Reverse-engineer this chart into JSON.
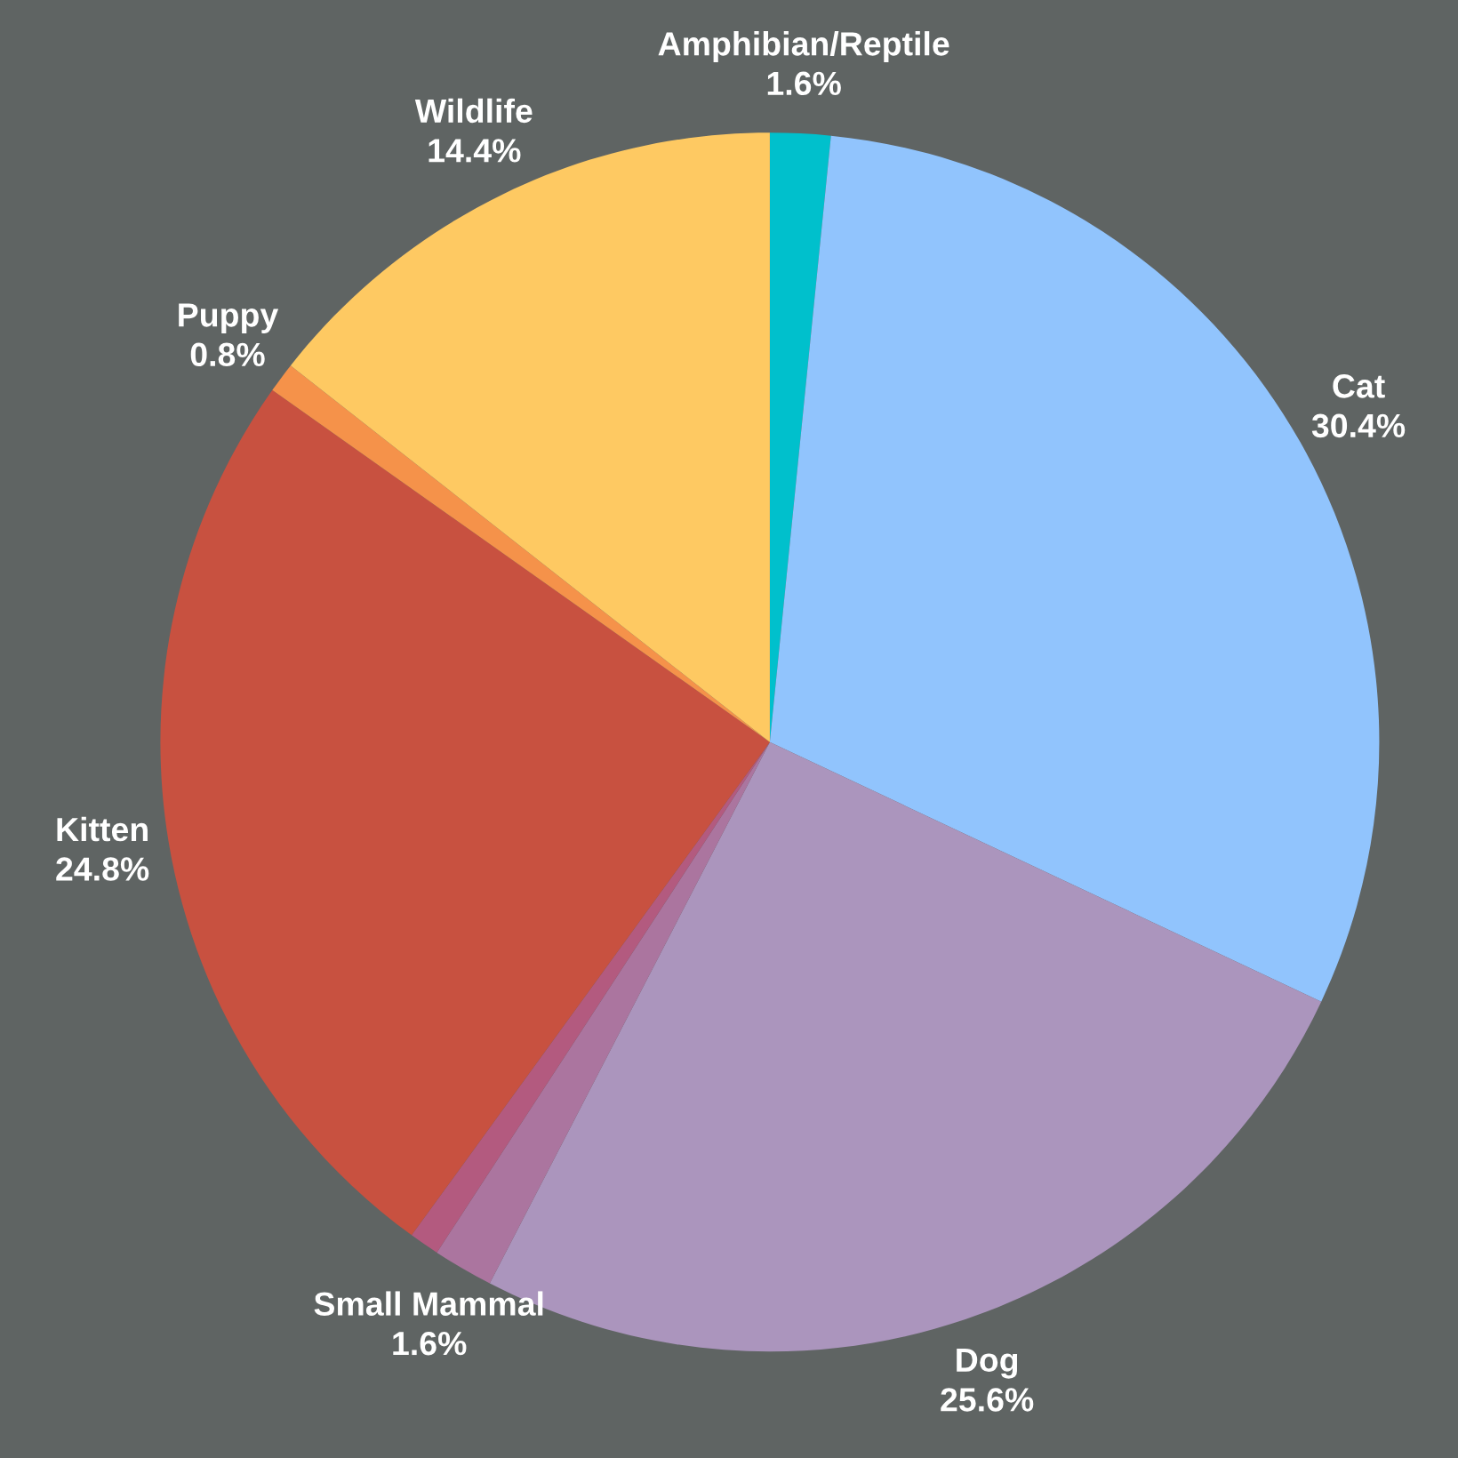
{
  "chart_data": {
    "type": "pie",
    "categories": [
      "Amphibian/Reptile",
      "Cat",
      "Dog",
      "Small Mammal",
      null,
      "Kitten",
      "Puppy",
      "Wildlife"
    ],
    "values": [
      1.6,
      30.4,
      25.6,
      1.6,
      0.8,
      24.8,
      0.8,
      14.4
    ],
    "value_labels": [
      "1.6%",
      "30.4%",
      "25.6%",
      "1.6%",
      null,
      "24.8%",
      "0.8%",
      "14.4%"
    ],
    "colors": [
      "#00c0cc",
      "#91c4fd",
      "#ab95bd",
      "#ab759f",
      "#b35a7f",
      "#c85140",
      "#f5924a",
      "#fec962"
    ],
    "legend": false
  }
}
